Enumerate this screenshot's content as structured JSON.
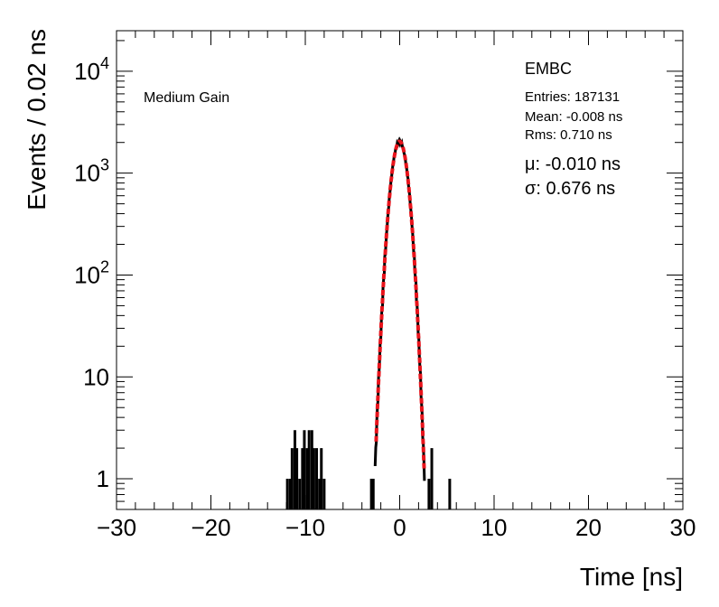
{
  "chart_data": {
    "type": "histogram",
    "xlabel": "Time [ns]",
    "ylabel": "Events / 0.02 ns",
    "xlim": [
      -30,
      30
    ],
    "ylim": [
      0.5,
      25000
    ],
    "yscale": "log",
    "bin_width": 0.02,
    "x_ticks": [
      -30,
      -20,
      -10,
      0,
      10,
      20,
      30
    ],
    "x_tick_labels": [
      "−30",
      "−20",
      "−10",
      "0",
      "10",
      "20",
      "30"
    ],
    "y_ticks": [
      {
        "value": 1,
        "base": "1",
        "exp": ""
      },
      {
        "value": 10,
        "base": "10",
        "exp": ""
      },
      {
        "value": 100,
        "base": "10",
        "exp": "2"
      },
      {
        "value": 1000,
        "base": "10",
        "exp": "3"
      },
      {
        "value": 10000,
        "base": "10",
        "exp": "4"
      }
    ],
    "grid": false,
    "category_label": "Medium Gain",
    "detector_label": "EMBC",
    "stats": [
      "Entries: 187131",
      "Mean: -0.008 ns",
      "Rms: 0.710 ns"
    ],
    "fit_results": [
      "μ: -0.010 ns",
      "σ: 0.676 ns"
    ],
    "histogram_color": "#000000",
    "fit_color": "#e8141c",
    "fit": {
      "function": "gaussian",
      "peak": 2050,
      "mean": -0.01,
      "sigma": 0.676,
      "x_range": [
        -2.5,
        2.6
      ]
    },
    "outlier_bins": [
      {
        "x": -11.9,
        "y": 1
      },
      {
        "x": -11.6,
        "y": 1
      },
      {
        "x": -11.4,
        "y": 2
      },
      {
        "x": -11.1,
        "y": 3
      },
      {
        "x": -10.9,
        "y": 2
      },
      {
        "x": -10.6,
        "y": 1
      },
      {
        "x": -10.3,
        "y": 2
      },
      {
        "x": -10.1,
        "y": 3
      },
      {
        "x": -9.8,
        "y": 2
      },
      {
        "x": -9.6,
        "y": 3
      },
      {
        "x": -9.3,
        "y": 3
      },
      {
        "x": -9.1,
        "y": 2
      },
      {
        "x": -8.8,
        "y": 2
      },
      {
        "x": -8.5,
        "y": 1
      },
      {
        "x": -8.3,
        "y": 2
      },
      {
        "x": -8.0,
        "y": 1
      },
      {
        "x": -3.0,
        "y": 1
      },
      {
        "x": -2.8,
        "y": 1
      },
      {
        "x": 3.1,
        "y": 1
      },
      {
        "x": 3.4,
        "y": 2
      },
      {
        "x": 5.3,
        "y": 1
      }
    ]
  }
}
